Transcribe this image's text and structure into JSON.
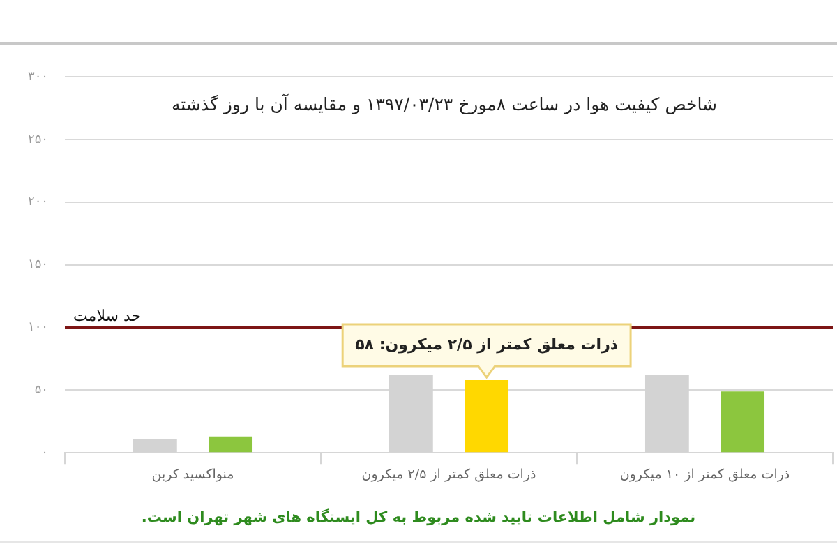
{
  "chart_data": {
    "type": "bar",
    "title": "شاخص کیفیت هوا در ساعت ۸مورخ ۱۳۹۷/۰۳/۲۳ و مقایسه آن با روز گذشته",
    "categories": [
      "منواکسید کربن",
      "ذرات معلق کمتر از ۲/۵ میکرون",
      "ذرات معلق کمتر از ۱۰ میکرون"
    ],
    "series": [
      {
        "color": "#d3d3d3",
        "values": [
          11,
          62,
          62
        ]
      },
      {
        "colors": [
          "#8cc63e",
          "#ffd800",
          "#8cc63e"
        ],
        "values": [
          13,
          58,
          49
        ],
        "value_labels": [
          null,
          "ذرات معلق کمتر از ۲/۵ میکرون: ۵۸",
          null
        ]
      }
    ],
    "ylim": [
      0,
      300
    ],
    "yticks": [
      {
        "value": 0,
        "label": "۰"
      },
      {
        "value": 50,
        "label": "۵۰"
      },
      {
        "value": 100,
        "label": "۱۰۰"
      },
      {
        "value": 150,
        "label": "۱۵۰"
      },
      {
        "value": 200,
        "label": "۲۰۰"
      },
      {
        "value": 250,
        "label": "۲۵۰"
      },
      {
        "value": 300,
        "label": "۳۰۰"
      }
    ],
    "grid": "y",
    "ref_lines": [
      {
        "axis": "y",
        "value": 100,
        "label": "حد سلامت",
        "color": "#7d1515"
      }
    ],
    "annotations": [
      "نمودار شامل اطلاعات تایید شده مربوط به کل ایستگاه های شهر تهران است."
    ]
  }
}
